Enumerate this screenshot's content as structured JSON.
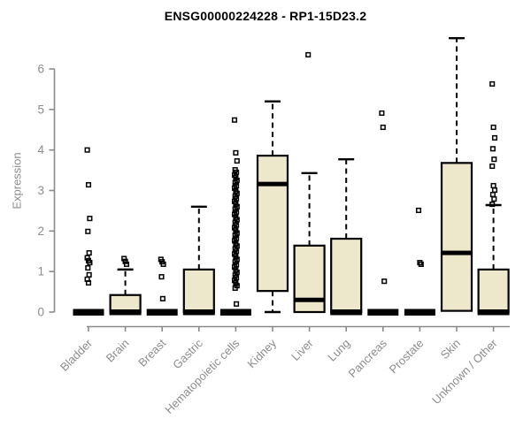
{
  "chart_data": {
    "type": "boxplot",
    "title": "ENSG00000224228 - RP1-15D23.2",
    "ylabel": "Expression",
    "xlabel": "",
    "ylim": [
      0,
      6.9
    ],
    "yticks": [
      0,
      1,
      2,
      3,
      4,
      5,
      6
    ],
    "grid": false,
    "legend": "none",
    "colors": {
      "box_fill": "#EDE7CB",
      "box_stroke": "#000000",
      "axis": "#8A8A8A",
      "labels": "#8C8C8C",
      "title": "#000000"
    },
    "categories": [
      "Bladder",
      "Brain",
      "Breast",
      "Gastric",
      "Hematopoietic cells",
      "Kidney",
      "Liver",
      "Lung",
      "Pancreas",
      "Prostate",
      "Skin",
      "Unknown / Other"
    ],
    "boxes": [
      {
        "category": "Bladder",
        "q1": 0,
        "median": 0,
        "q3": 0,
        "whisker_low": 0,
        "whisker_high": 0,
        "outliers": [
          4.0,
          3.14,
          2.31,
          1.99,
          1.46,
          1.34,
          1.27,
          1.22,
          1.09,
          0.92,
          0.81,
          0.72
        ]
      },
      {
        "category": "Brain",
        "q1": 0,
        "median": 0,
        "q3": 0.42,
        "whisker_low": 0,
        "whisker_high": 1.05,
        "outliers": [
          1.32,
          1.25,
          1.18
        ]
      },
      {
        "category": "Breast",
        "q1": 0,
        "median": 0,
        "q3": 0,
        "whisker_low": 0,
        "whisker_high": 0,
        "outliers": [
          1.3,
          1.24,
          1.18,
          0.87,
          0.33
        ]
      },
      {
        "category": "Gastric",
        "q1": 0,
        "median": 0,
        "q3": 1.05,
        "whisker_low": 0,
        "whisker_high": 2.6,
        "outliers": []
      },
      {
        "category": "Hematopoietic cells",
        "q1": 0,
        "median": 0,
        "q3": 0,
        "whisker_low": 0,
        "whisker_high": 0,
        "outliers": [
          4.74,
          3.93,
          3.73,
          3.51,
          3.45,
          3.38,
          3.32,
          3.25,
          3.19,
          3.12,
          3.06,
          2.99,
          2.93,
          2.86,
          2.8,
          2.73,
          2.67,
          2.6,
          2.54,
          2.47,
          2.41,
          2.34,
          2.28,
          2.21,
          2.15,
          2.08,
          2.02,
          1.95,
          1.89,
          1.82,
          1.76,
          1.69,
          1.63,
          1.56,
          1.5,
          1.43,
          1.37,
          1.3,
          1.24,
          1.17,
          1.11,
          1.04,
          0.98,
          0.91,
          0.85,
          0.78,
          0.72,
          0.65,
          0.59,
          0.2
        ]
      },
      {
        "category": "Kidney",
        "q1": 0.52,
        "median": 3.16,
        "q3": 3.86,
        "whisker_low": 0,
        "whisker_high": 5.2,
        "outliers": []
      },
      {
        "category": "Liver",
        "q1": 0,
        "median": 0.3,
        "q3": 1.64,
        "whisker_low": 0,
        "whisker_high": 3.43,
        "outliers": [
          6.35
        ]
      },
      {
        "category": "Lung",
        "q1": 0,
        "median": 0,
        "q3": 1.81,
        "whisker_low": 0,
        "whisker_high": 3.77,
        "outliers": []
      },
      {
        "category": "Pancreas",
        "q1": 0,
        "median": 0,
        "q3": 0,
        "whisker_low": 0,
        "whisker_high": 0,
        "outliers": [
          4.91,
          4.56,
          0.76
        ]
      },
      {
        "category": "Prostate",
        "q1": 0,
        "median": 0,
        "q3": 0,
        "whisker_low": 0,
        "whisker_high": 0,
        "outliers": [
          2.51,
          1.22,
          1.18
        ]
      },
      {
        "category": "Skin",
        "q1": 0.03,
        "median": 1.46,
        "q3": 3.68,
        "whisker_low": 0.03,
        "whisker_high": 6.76,
        "outliers": []
      },
      {
        "category": "Unknown / Other",
        "q1": 0,
        "median": 0,
        "q3": 1.05,
        "whisker_low": 0,
        "whisker_high": 2.64,
        "outliers": [
          5.63,
          4.56,
          4.3,
          4.03,
          3.77,
          3.6,
          3.12,
          3.01,
          2.9,
          2.79,
          2.66
        ]
      }
    ]
  }
}
